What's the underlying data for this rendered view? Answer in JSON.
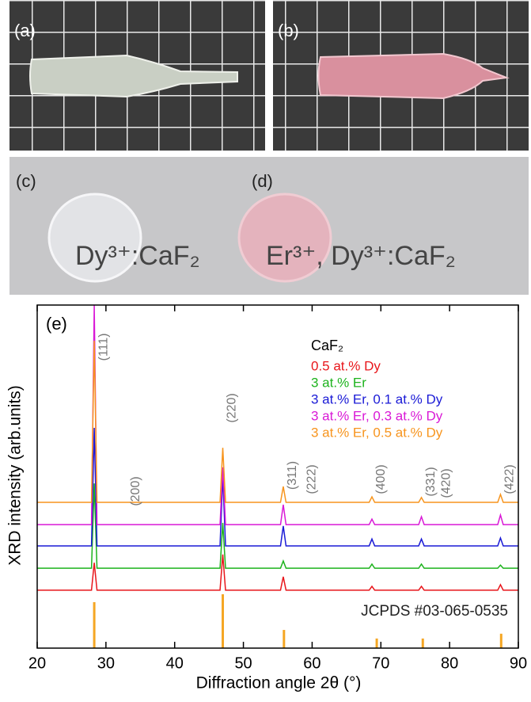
{
  "photos": {
    "a": {
      "label": "(a)"
    },
    "b": {
      "label": "(b)"
    },
    "c": {
      "label": "(c)",
      "text": "Dy³⁺:CaF₂"
    },
    "d": {
      "label": "(d)",
      "text": "Er³⁺, Dy³⁺:CaF₂"
    }
  },
  "chart_data": {
    "type": "line",
    "panel_label": "(e)",
    "xlabel": "Diffraction angle 2θ (°)",
    "ylabel": "XRD intensity (arb.units)",
    "xlim": [
      20,
      90
    ],
    "xticks": [
      20,
      30,
      40,
      50,
      60,
      70,
      80,
      90
    ],
    "ylim": [
      0,
      100
    ],
    "legend_title": "CaF₂",
    "x": [
      20,
      27.9,
      28.3,
      28.7,
      46.6,
      47.0,
      47.4,
      55.4,
      55.8,
      56.2,
      68.3,
      68.7,
      69.1,
      75.5,
      75.9,
      76.3,
      87.0,
      87.4,
      87.8,
      90
    ],
    "series": [
      {
        "name": "0.5 at.% Dy",
        "color": "#e8161b",
        "values": [
          16.9,
          16.9,
          24.9,
          16.9,
          16.9,
          27.3,
          16.9,
          16.9,
          20.8,
          16.9,
          16.9,
          18.0,
          16.9,
          16.9,
          18.0,
          16.9,
          16.9,
          18.5,
          16.9,
          16.9
        ]
      },
      {
        "name": "3 at.% Er",
        "color": "#1db31d",
        "values": [
          23.3,
          23.3,
          48,
          23.3,
          23.3,
          36.5,
          23.3,
          23.3,
          25.4,
          23.3,
          23.3,
          24.5,
          23.3,
          23.3,
          24.5,
          23.3,
          23.3,
          24.2,
          23.3,
          23.3
        ]
      },
      {
        "name": "3 at.% Er, 0.1 at.% Dy",
        "color": "#1a1ad6",
        "values": [
          29.8,
          29.8,
          64.2,
          29.8,
          29.8,
          50.3,
          29.8,
          29.8,
          35.6,
          29.8,
          29.8,
          31.8,
          29.8,
          29.8,
          31.8,
          29.8,
          29.8,
          32.1,
          29.8,
          29.8
        ]
      },
      {
        "name": "3 at.% Er, 0.3 at.% Dy",
        "color": "#d919d6",
        "values": [
          36.0,
          36.0,
          100,
          36.0,
          36.0,
          52.7,
          36.0,
          36.0,
          41.8,
          36.0,
          36.0,
          37.6,
          36.0,
          36.0,
          38.3,
          36.0,
          36.0,
          38.8,
          36.0,
          36.0
        ]
      },
      {
        "name": "3 at.% Er, 0.5 at.% Dy",
        "color": "#f7941d",
        "values": [
          42.5,
          42.5,
          89.6,
          42.5,
          42.5,
          58.4,
          42.5,
          42.5,
          47.1,
          42.5,
          42.5,
          44.1,
          42.5,
          42.5,
          43.9,
          42.5,
          42.5,
          44.8,
          42.5,
          42.5
        ]
      }
    ],
    "reference": {
      "name": "JCPDS #03-065-0535",
      "color": "#f5a623",
      "x": [
        28.3,
        47.0,
        55.9,
        69.4,
        76.1,
        87.5
      ],
      "values": [
        13.4,
        15.7,
        5.3,
        2.8,
        2.8,
        4.2
      ]
    },
    "annotations": [
      {
        "text": "(111)",
        "x": 28.3
      },
      {
        "text": "(200)",
        "x": 33.0
      },
      {
        "text": "(220)",
        "x": 47.0
      },
      {
        "text": "(311)",
        "x": 55.8
      },
      {
        "text": "(222)",
        "x": 58.6
      },
      {
        "text": "(400)",
        "x": 68.7
      },
      {
        "text": "(331)",
        "x": 75.9
      },
      {
        "text": "(420)",
        "x": 78.2
      },
      {
        "text": "(422)",
        "x": 87.4
      }
    ]
  }
}
